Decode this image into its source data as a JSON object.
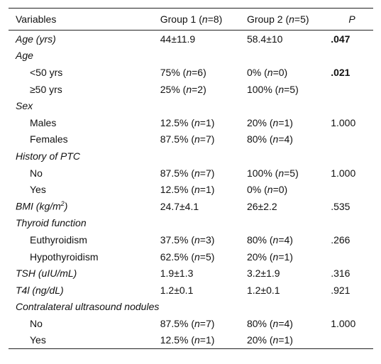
{
  "columns": [
    "Variables",
    "Group 1 (",
    "n",
    "=8)",
    "Group 2 (",
    "n",
    "=5)",
    "P"
  ],
  "rows": [
    {
      "var": "Age (yrs)",
      "type": "sec",
      "g1": "44±11.9",
      "g2": "58.4±10",
      "p": ".047",
      "p_bold": true
    },
    {
      "var": "Age",
      "type": "sec"
    },
    {
      "var": "<50 yrs",
      "type": "sub",
      "g1": [
        "75% (",
        "n",
        "=6)"
      ],
      "g2": [
        "0% (",
        "n",
        "=0)"
      ],
      "p": ".021",
      "p_bold": true
    },
    {
      "var": "≥50 yrs",
      "type": "sub",
      "g1": [
        "25% (",
        "n",
        "=2)"
      ],
      "g2": [
        "100% (",
        "n",
        "=5)"
      ]
    },
    {
      "var": "Sex",
      "type": "sec"
    },
    {
      "var": "Males",
      "type": "sub",
      "g1": [
        "12.5% (",
        "n",
        "=1)"
      ],
      "g2": [
        "20% (",
        "n",
        "=1)"
      ],
      "p": "1.000"
    },
    {
      "var": "Females",
      "type": "sub",
      "g1": [
        "87.5% (",
        "n",
        "=7)"
      ],
      "g2": [
        "80% (",
        "n",
        "=4)"
      ]
    },
    {
      "var": "History of PTC",
      "type": "sec"
    },
    {
      "var": "No",
      "type": "sub",
      "g1": [
        "87.5% (",
        "n",
        "=7)"
      ],
      "g2": [
        "100% (",
        "n",
        "=5)"
      ],
      "p": "1.000"
    },
    {
      "var": "Yes",
      "type": "sub",
      "g1": [
        "12.5% (",
        "n",
        "=1)"
      ],
      "g2": [
        "0% (",
        "n",
        "=0)"
      ]
    },
    {
      "var": "BMI (kg/m",
      "var_sup": "2",
      "var_tail": ")",
      "type": "sec",
      "g1": "24.7±4.1",
      "g2": "26±2.2",
      "p": ".535"
    },
    {
      "var": "Thyroid function",
      "type": "sec"
    },
    {
      "var": "Euthyroidism",
      "type": "sub",
      "g1": [
        "37.5% (",
        "n",
        "=3)"
      ],
      "g2": [
        "80% (",
        "n",
        "=4)"
      ],
      "p": ".266"
    },
    {
      "var": "Hypothyroidism",
      "type": "sub",
      "g1": [
        "62.5% (",
        "n",
        "=5)"
      ],
      "g2": [
        "20% (",
        "n",
        "=1)"
      ]
    },
    {
      "var": "TSH (uIU/mL)",
      "type": "sec",
      "g1": "1.9±1.3",
      "g2": "3.2±1.9",
      "p": ".316"
    },
    {
      "var": "T4l (ng/dL)",
      "type": "sec",
      "g1": "1.2±0.1",
      "g2": "1.2±0.1",
      "p": ".921"
    },
    {
      "var": "Contralateral ultrasound nodules",
      "type": "sec"
    },
    {
      "var": "No",
      "type": "sub",
      "g1": [
        "87.5% (",
        "n",
        "=7)"
      ],
      "g2": [
        "80% (",
        "n",
        "=4)"
      ],
      "p": "1.000"
    },
    {
      "var": "Yes",
      "type": "sub",
      "g1": [
        "12.5% (",
        "n",
        "=1)"
      ],
      "g2": [
        "20% (",
        "n",
        "=1)"
      ]
    }
  ]
}
